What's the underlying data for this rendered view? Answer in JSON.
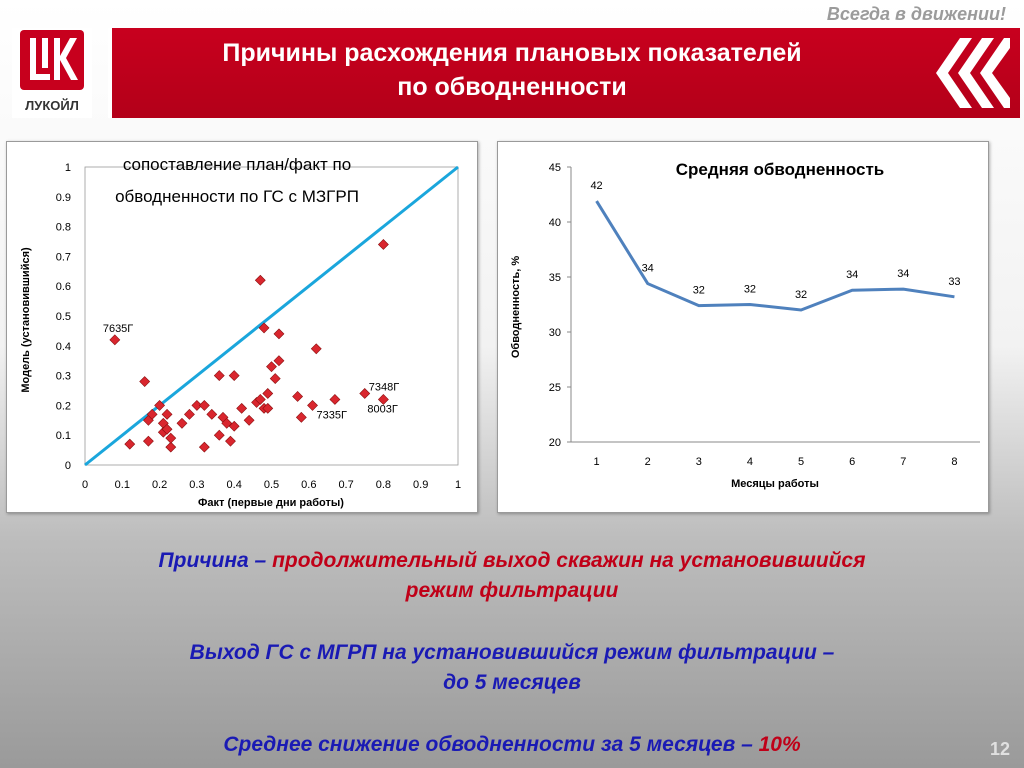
{
  "header": {
    "slogan": "Всегда в движении!",
    "logo_text": "ЛУКОЙЛ",
    "title_line1": "Причины расхождения плановых показателей",
    "title_line2": "по обводненности",
    "colors": {
      "brand_red": "#c8001e",
      "white": "#ffffff"
    }
  },
  "chart_data": [
    {
      "type": "scatter",
      "title_line1": "сопоставление план/факт  по",
      "title_line2": "обводненности  по ГС с МЗГРП",
      "xlabel": "Факт (первые  дни работы)",
      "ylabel": "Модель (установившийся)",
      "xlim": [
        0,
        1
      ],
      "ylim": [
        0,
        1
      ],
      "xticks": [
        "0",
        "0.1",
        "0.2",
        "0.3",
        "0.4",
        "0.5",
        "0.6",
        "0.7",
        "0.8",
        "0.9",
        "1"
      ],
      "yticks": [
        "0",
        "0.1",
        "0.2",
        "0.3",
        "0.4",
        "0.5",
        "0.6",
        "0.7",
        "0.8",
        "0.9",
        "1"
      ],
      "reference_line": {
        "from": [
          0,
          0
        ],
        "to": [
          1,
          1
        ],
        "color": "#1aa6dc"
      },
      "marker_color": "#d9262e",
      "points": [
        [
          0.08,
          0.42
        ],
        [
          0.12,
          0.07
        ],
        [
          0.16,
          0.28
        ],
        [
          0.17,
          0.08
        ],
        [
          0.17,
          0.15
        ],
        [
          0.18,
          0.17
        ],
        [
          0.2,
          0.2
        ],
        [
          0.21,
          0.14
        ],
        [
          0.21,
          0.11
        ],
        [
          0.22,
          0.17
        ],
        [
          0.22,
          0.12
        ],
        [
          0.23,
          0.06
        ],
        [
          0.23,
          0.09
        ],
        [
          0.26,
          0.14
        ],
        [
          0.28,
          0.17
        ],
        [
          0.3,
          0.2
        ],
        [
          0.32,
          0.2
        ],
        [
          0.32,
          0.06
        ],
        [
          0.34,
          0.17
        ],
        [
          0.36,
          0.3
        ],
        [
          0.36,
          0.1
        ],
        [
          0.37,
          0.16
        ],
        [
          0.38,
          0.14
        ],
        [
          0.39,
          0.08
        ],
        [
          0.4,
          0.3
        ],
        [
          0.4,
          0.13
        ],
        [
          0.42,
          0.19
        ],
        [
          0.44,
          0.15
        ],
        [
          0.46,
          0.21
        ],
        [
          0.47,
          0.62
        ],
        [
          0.47,
          0.22
        ],
        [
          0.48,
          0.46
        ],
        [
          0.48,
          0.19
        ],
        [
          0.49,
          0.24
        ],
        [
          0.49,
          0.19
        ],
        [
          0.5,
          0.33
        ],
        [
          0.51,
          0.29
        ],
        [
          0.52,
          0.35
        ],
        [
          0.52,
          0.44
        ],
        [
          0.57,
          0.23
        ],
        [
          0.58,
          0.16
        ],
        [
          0.61,
          0.2
        ],
        [
          0.62,
          0.39
        ],
        [
          0.67,
          0.22
        ],
        [
          0.75,
          0.24
        ],
        [
          0.8,
          0.74
        ],
        [
          0.8,
          0.22
        ]
      ],
      "annotations": [
        {
          "label": "7635Г",
          "x": 0.08,
          "y": 0.42
        },
        {
          "label": "7348Г",
          "x": 0.75,
          "y": 0.24
        },
        {
          "label": "8003Г",
          "x": 0.8,
          "y": 0.22
        },
        {
          "label": "7335Г",
          "x": 0.61,
          "y": 0.2
        }
      ]
    },
    {
      "type": "line",
      "title": "Средняя обводненность",
      "xlabel": "Месяцы работы",
      "ylabel": "Обводненность, %",
      "categories": [
        "1",
        "2",
        "3",
        "4",
        "5",
        "6",
        "7",
        "8"
      ],
      "values": [
        41.9,
        34.4,
        32.4,
        32.5,
        32.0,
        33.8,
        33.9,
        33.2
      ],
      "data_labels": [
        "42",
        "34",
        "32",
        "32",
        "32",
        "34",
        "34",
        "33"
      ],
      "ylim": [
        20,
        45
      ],
      "yticks": [
        "20",
        "25",
        "30",
        "35",
        "40",
        "45"
      ],
      "line_color": "#4f81bd"
    }
  ],
  "text": {
    "reason_label": "Причина – ",
    "reason_text": "продолжительный выход скважин на установившийся",
    "reason_text2": "режим фильтрации",
    "exit_line1": "Выход ГС с МГРП на установившийся режим фильтрации –",
    "exit_line2": "до 5 месяцев",
    "avg_label": "Среднее снижение обводненности за 5 месяцев – ",
    "avg_value": "10%"
  },
  "footer": {
    "page_number": "12"
  }
}
